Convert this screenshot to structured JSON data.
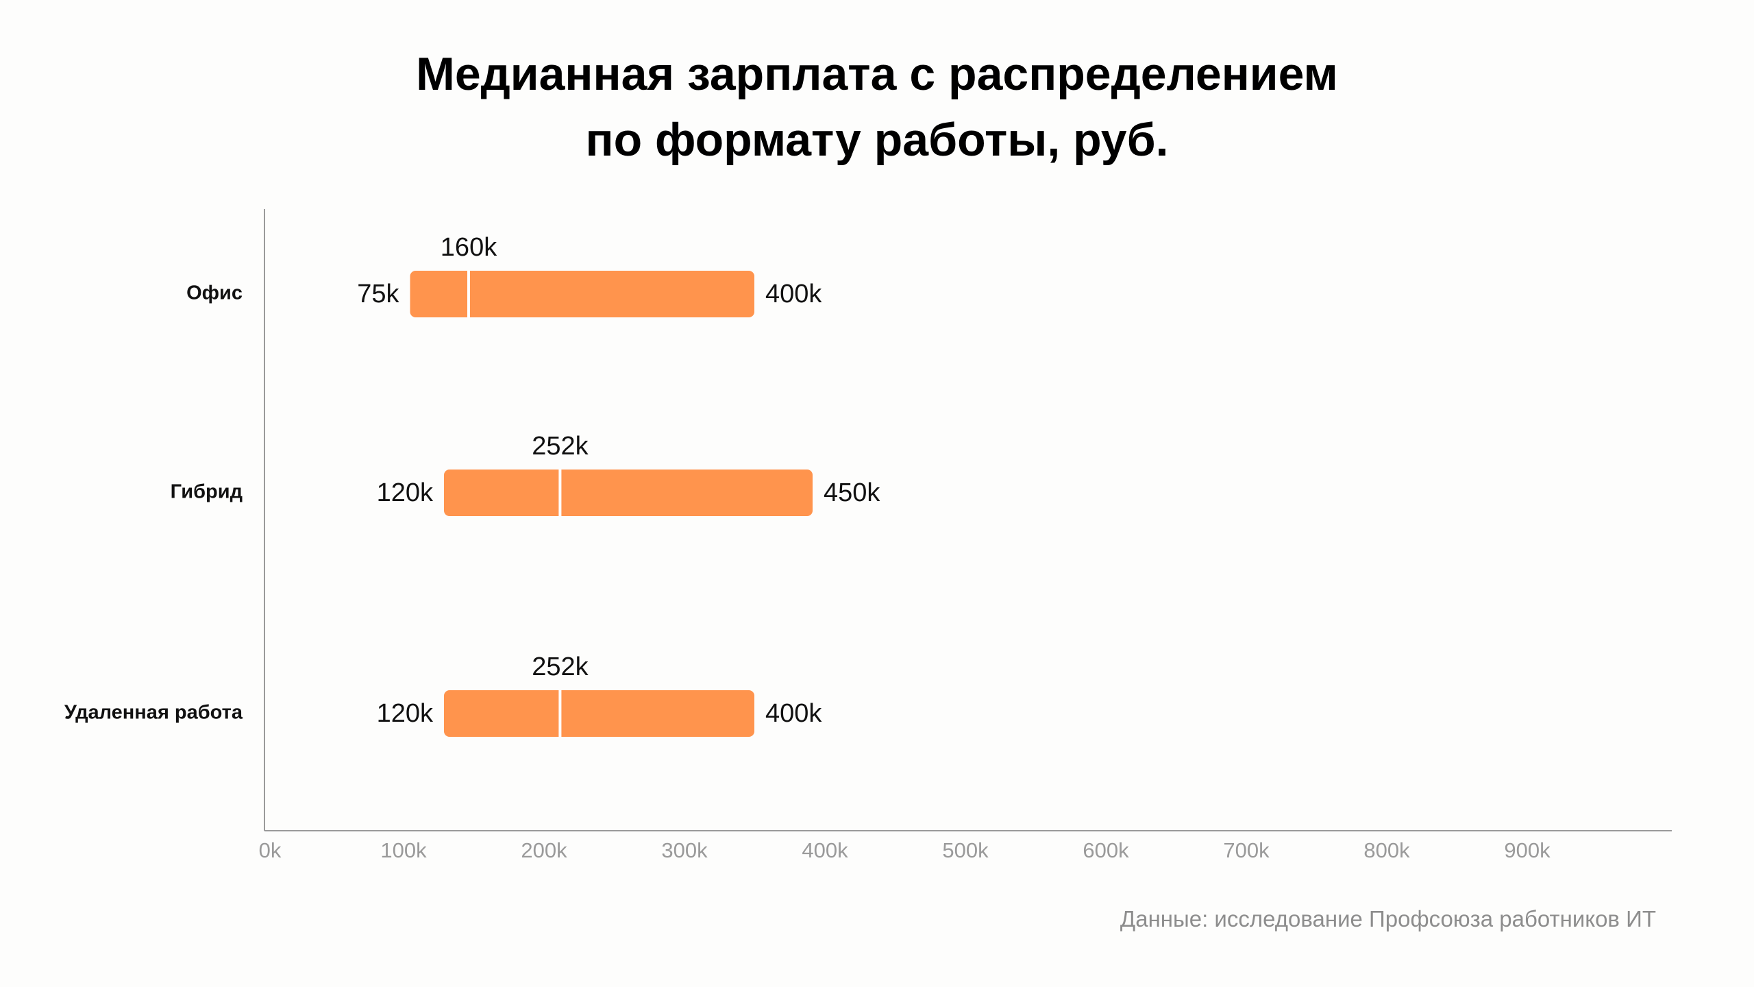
{
  "title_line1": "Медианная зарплата с распределением",
  "title_line2": "по формату работы, руб.",
  "source": "Данные: исследование Профсоюза работников ИТ",
  "colors": {
    "bar": "#ff944d",
    "median": "#ffffff",
    "axis": "#9a9a9a",
    "tick": "#9a9a9a",
    "text": "#111111"
  },
  "chart_data": {
    "type": "range-bar",
    "orientation": "horizontal",
    "categories": [
      "Офис",
      "Гибрид",
      "Удаленная работа"
    ],
    "series": [
      {
        "category": "Офис",
        "min": 75000,
        "median": 160000,
        "max": 400000,
        "min_label": "75k",
        "median_label": "160k",
        "max_label": "400k"
      },
      {
        "category": "Гибрид",
        "min": 120000,
        "median": 252000,
        "max": 450000,
        "min_label": "120k",
        "median_label": "252k",
        "max_label": "450k"
      },
      {
        "category": "Удаленная работа",
        "min": 120000,
        "median": 252000,
        "max": 400000,
        "min_label": "120k",
        "median_label": "252k",
        "max_label": "400k"
      }
    ],
    "x_ticks": [
      0,
      100000,
      200000,
      300000,
      400000,
      500000,
      600000,
      700000,
      800000,
      900000
    ],
    "x_tick_labels": [
      "0k",
      "100k",
      "200k",
      "300k",
      "400k",
      "500k",
      "600k",
      "700k",
      "800k",
      "900k"
    ],
    "xlim": [
      0,
      1000000
    ],
    "grid": false
  }
}
